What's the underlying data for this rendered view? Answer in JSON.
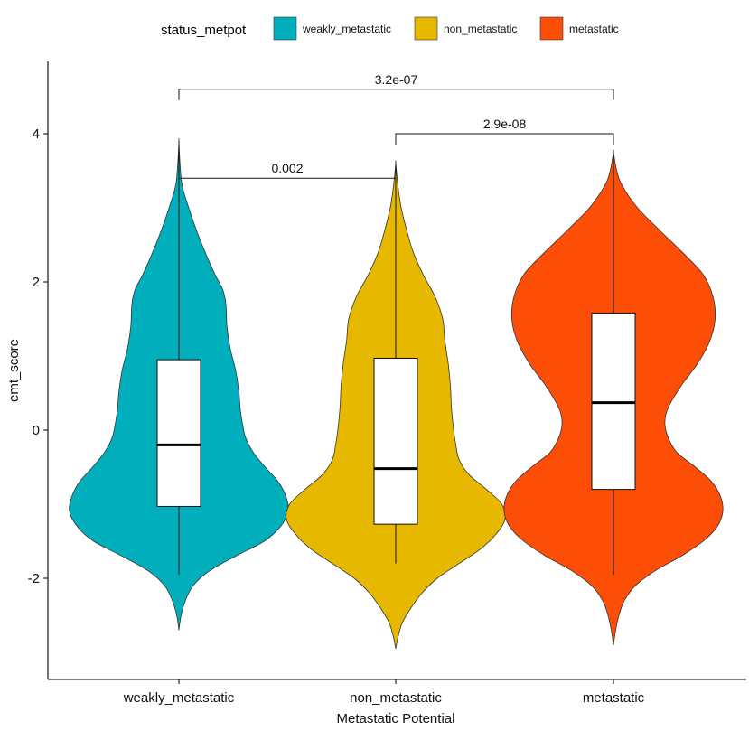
{
  "chart_data": {
    "type": "violin",
    "title": "",
    "legend": {
      "title": "status_metpot",
      "position": "top",
      "entries": [
        {
          "label": "weakly_metastatic",
          "color": "#00AFBB"
        },
        {
          "label": "non_metastatic",
          "color": "#E7B800"
        },
        {
          "label": "metastatic",
          "color": "#FC4E07"
        }
      ]
    },
    "xlabel": "Metastatic Potential",
    "ylabel": "emt_score",
    "categories": [
      "weakly_metastatic",
      "non_metastatic",
      "metastatic"
    ],
    "ylim": [
      -3.3,
      5.0
    ],
    "yticks": [
      -2,
      0,
      2,
      4
    ],
    "series": [
      {
        "name": "weakly_metastatic",
        "color": "#00AFBB",
        "box": {
          "q1": -1.03,
          "median": -0.2,
          "q3": 0.95,
          "whisker_low": -1.95,
          "whisker_high": 3.9
        },
        "data_min": -2.7,
        "data_max": 3.9,
        "density": [
          [
            -2.7,
            0.0
          ],
          [
            -2.5,
            0.02
          ],
          [
            -2.3,
            0.06
          ],
          [
            -2.1,
            0.13
          ],
          [
            -1.9,
            0.28
          ],
          [
            -1.7,
            0.52
          ],
          [
            -1.5,
            0.78
          ],
          [
            -1.3,
            0.93
          ],
          [
            -1.1,
            1.0
          ],
          [
            -0.9,
            0.98
          ],
          [
            -0.7,
            0.91
          ],
          [
            -0.5,
            0.79
          ],
          [
            -0.3,
            0.68
          ],
          [
            -0.1,
            0.61
          ],
          [
            0.1,
            0.58
          ],
          [
            0.3,
            0.56
          ],
          [
            0.5,
            0.55
          ],
          [
            0.8,
            0.52
          ],
          [
            1.1,
            0.47
          ],
          [
            1.4,
            0.44
          ],
          [
            1.7,
            0.43
          ],
          [
            1.9,
            0.4
          ],
          [
            2.1,
            0.33
          ],
          [
            2.4,
            0.24
          ],
          [
            2.7,
            0.16
          ],
          [
            3.0,
            0.09
          ],
          [
            3.3,
            0.03
          ],
          [
            3.6,
            0.01
          ],
          [
            3.9,
            0.0
          ]
        ]
      },
      {
        "name": "non_metastatic",
        "color": "#E7B800",
        "box": {
          "q1": -1.27,
          "median": -0.52,
          "q3": 0.97,
          "whisker_low": -1.8,
          "whisker_high": 3.6
        },
        "data_min": -2.95,
        "data_max": 3.6,
        "density": [
          [
            -2.95,
            0.0
          ],
          [
            -2.8,
            0.02
          ],
          [
            -2.6,
            0.06
          ],
          [
            -2.4,
            0.14
          ],
          [
            -2.2,
            0.24
          ],
          [
            -2.0,
            0.38
          ],
          [
            -1.8,
            0.58
          ],
          [
            -1.6,
            0.78
          ],
          [
            -1.4,
            0.92
          ],
          [
            -1.2,
            1.0
          ],
          [
            -1.0,
            0.97
          ],
          [
            -0.8,
            0.83
          ],
          [
            -0.6,
            0.67
          ],
          [
            -0.4,
            0.58
          ],
          [
            -0.2,
            0.55
          ],
          [
            0.0,
            0.53
          ],
          [
            0.3,
            0.51
          ],
          [
            0.6,
            0.5
          ],
          [
            0.9,
            0.48
          ],
          [
            1.2,
            0.45
          ],
          [
            1.5,
            0.43
          ],
          [
            1.8,
            0.36
          ],
          [
            2.1,
            0.25
          ],
          [
            2.4,
            0.16
          ],
          [
            2.7,
            0.1
          ],
          [
            3.0,
            0.05
          ],
          [
            3.3,
            0.02
          ],
          [
            3.6,
            0.0
          ]
        ]
      },
      {
        "name": "metastatic",
        "color": "#FC4E07",
        "box": {
          "q1": -0.8,
          "median": 0.37,
          "q3": 1.58,
          "whisker_low": -1.95,
          "whisker_high": 3.75
        },
        "data_min": -2.9,
        "data_max": 3.75,
        "density": [
          [
            -2.9,
            0.0
          ],
          [
            -2.7,
            0.02
          ],
          [
            -2.5,
            0.05
          ],
          [
            -2.3,
            0.1
          ],
          [
            -2.1,
            0.2
          ],
          [
            -1.9,
            0.38
          ],
          [
            -1.7,
            0.62
          ],
          [
            -1.5,
            0.82
          ],
          [
            -1.3,
            0.95
          ],
          [
            -1.1,
            1.0
          ],
          [
            -0.9,
            0.98
          ],
          [
            -0.7,
            0.9
          ],
          [
            -0.5,
            0.75
          ],
          [
            -0.3,
            0.58
          ],
          [
            -0.1,
            0.5
          ],
          [
            0.1,
            0.47
          ],
          [
            0.3,
            0.5
          ],
          [
            0.6,
            0.62
          ],
          [
            0.9,
            0.77
          ],
          [
            1.2,
            0.88
          ],
          [
            1.5,
            0.93
          ],
          [
            1.8,
            0.91
          ],
          [
            2.1,
            0.82
          ],
          [
            2.4,
            0.63
          ],
          [
            2.7,
            0.42
          ],
          [
            3.0,
            0.22
          ],
          [
            3.3,
            0.08
          ],
          [
            3.5,
            0.03
          ],
          [
            3.75,
            0.0
          ]
        ]
      }
    ],
    "comparisons": [
      {
        "group1": "weakly_metastatic",
        "group2": "non_metastatic",
        "y": 3.4,
        "label": "0.002"
      },
      {
        "group1": "non_metastatic",
        "group2": "metastatic",
        "y": 4.0,
        "label": "2.9e-08"
      },
      {
        "group1": "weakly_metastatic",
        "group2": "metastatic",
        "y": 4.6,
        "label": "3.2e-07"
      }
    ]
  }
}
